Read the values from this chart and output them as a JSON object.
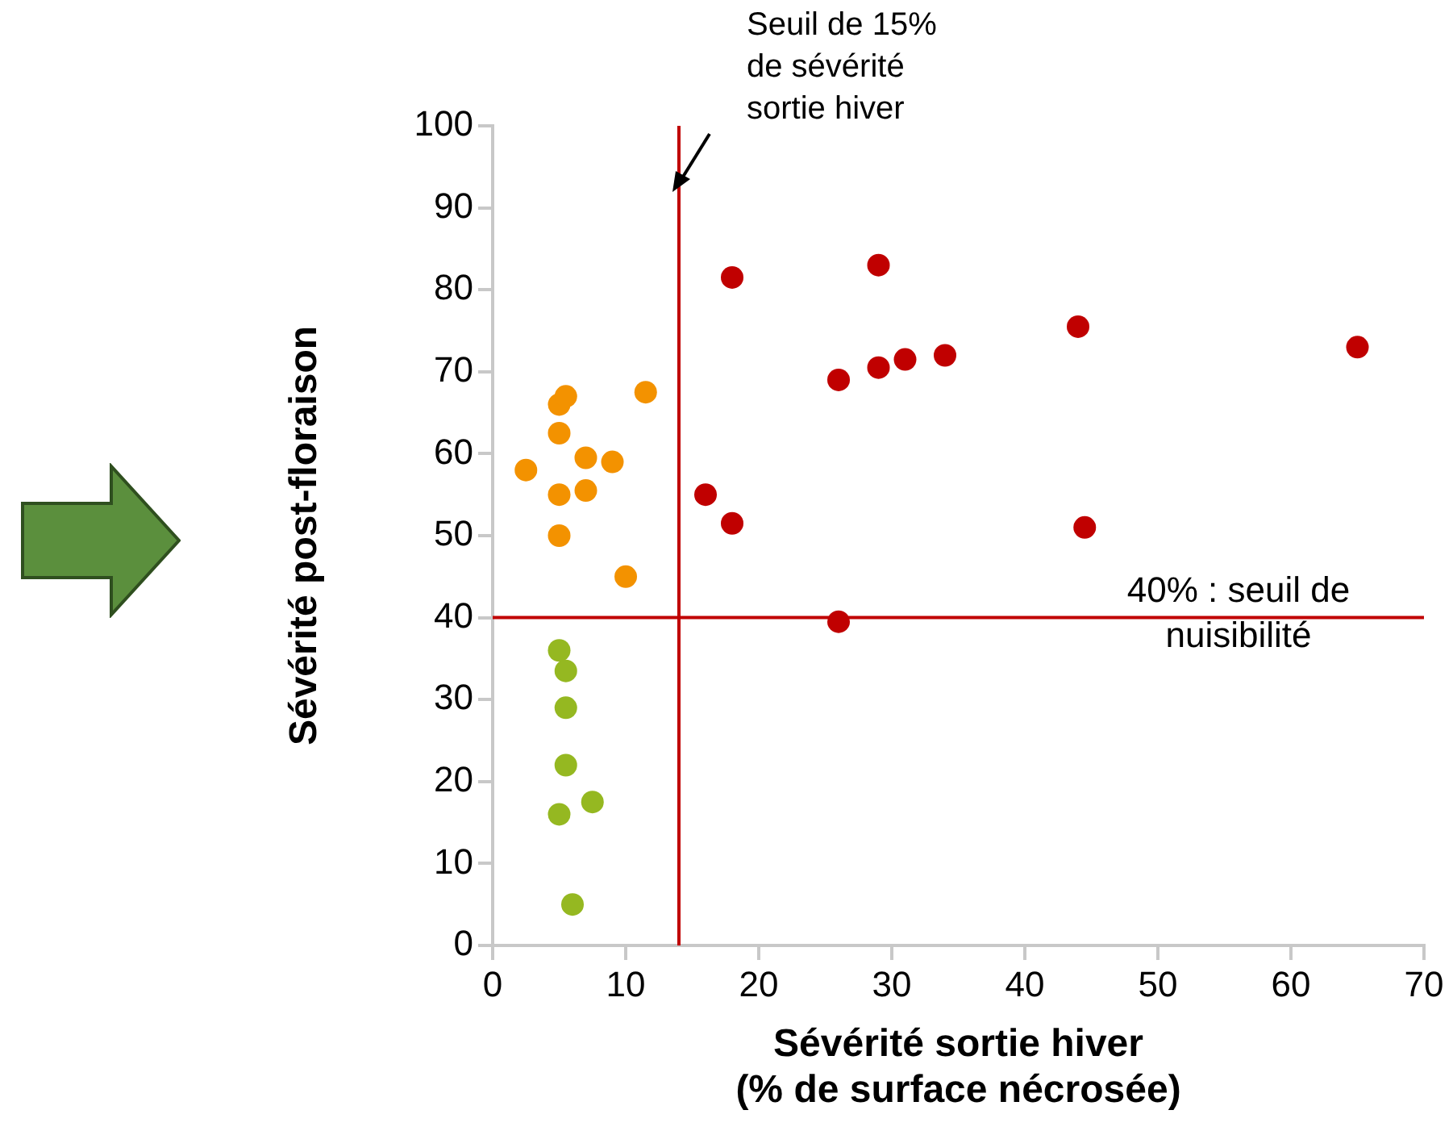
{
  "chart_data": {
    "type": "scatter",
    "xlabel": "Sévérité sortie hiver\n(% de surface nécrosée)",
    "ylabel": "Sévérité post-floraison",
    "xlim": [
      0,
      70
    ],
    "xticks": [
      0,
      10,
      20,
      30,
      40,
      50,
      60,
      70
    ],
    "ylim": [
      0,
      100
    ],
    "yticks": [
      0,
      10,
      20,
      30,
      40,
      50,
      60,
      70,
      80,
      90,
      100
    ],
    "grid": false,
    "legend": false,
    "marker": "circle",
    "series": [
      {
        "color": "#f39200",
        "x": [
          2.5,
          5,
          5.5,
          5,
          5,
          5,
          7,
          7,
          9,
          11.5,
          10
        ],
        "values": [
          58,
          66,
          67,
          62.5,
          55,
          50,
          55.5,
          59.5,
          59,
          67.5,
          45
        ]
      },
      {
        "color": "#95b821",
        "x": [
          5,
          5.5,
          5.5,
          5.5,
          7.5,
          5,
          6
        ],
        "values": [
          36,
          33.5,
          29,
          22,
          17.5,
          16,
          5
        ]
      },
      {
        "color": "#c00000",
        "x": [
          18,
          29,
          26,
          29,
          31,
          34,
          44,
          65,
          16,
          18,
          44.5,
          26
        ],
        "values": [
          81.5,
          83,
          69,
          70.5,
          71.5,
          72,
          75.5,
          73,
          55,
          51.5,
          51,
          39.5
        ]
      }
    ],
    "ref_lines": [
      {
        "axis": "x",
        "value": 14,
        "label": "Seuil de 15% de sévérité sortie hiver",
        "color": "#c00000"
      },
      {
        "axis": "y",
        "value": 40,
        "label": "40% : seuil de nuisibilité",
        "color": "#c00000"
      }
    ]
  }
}
